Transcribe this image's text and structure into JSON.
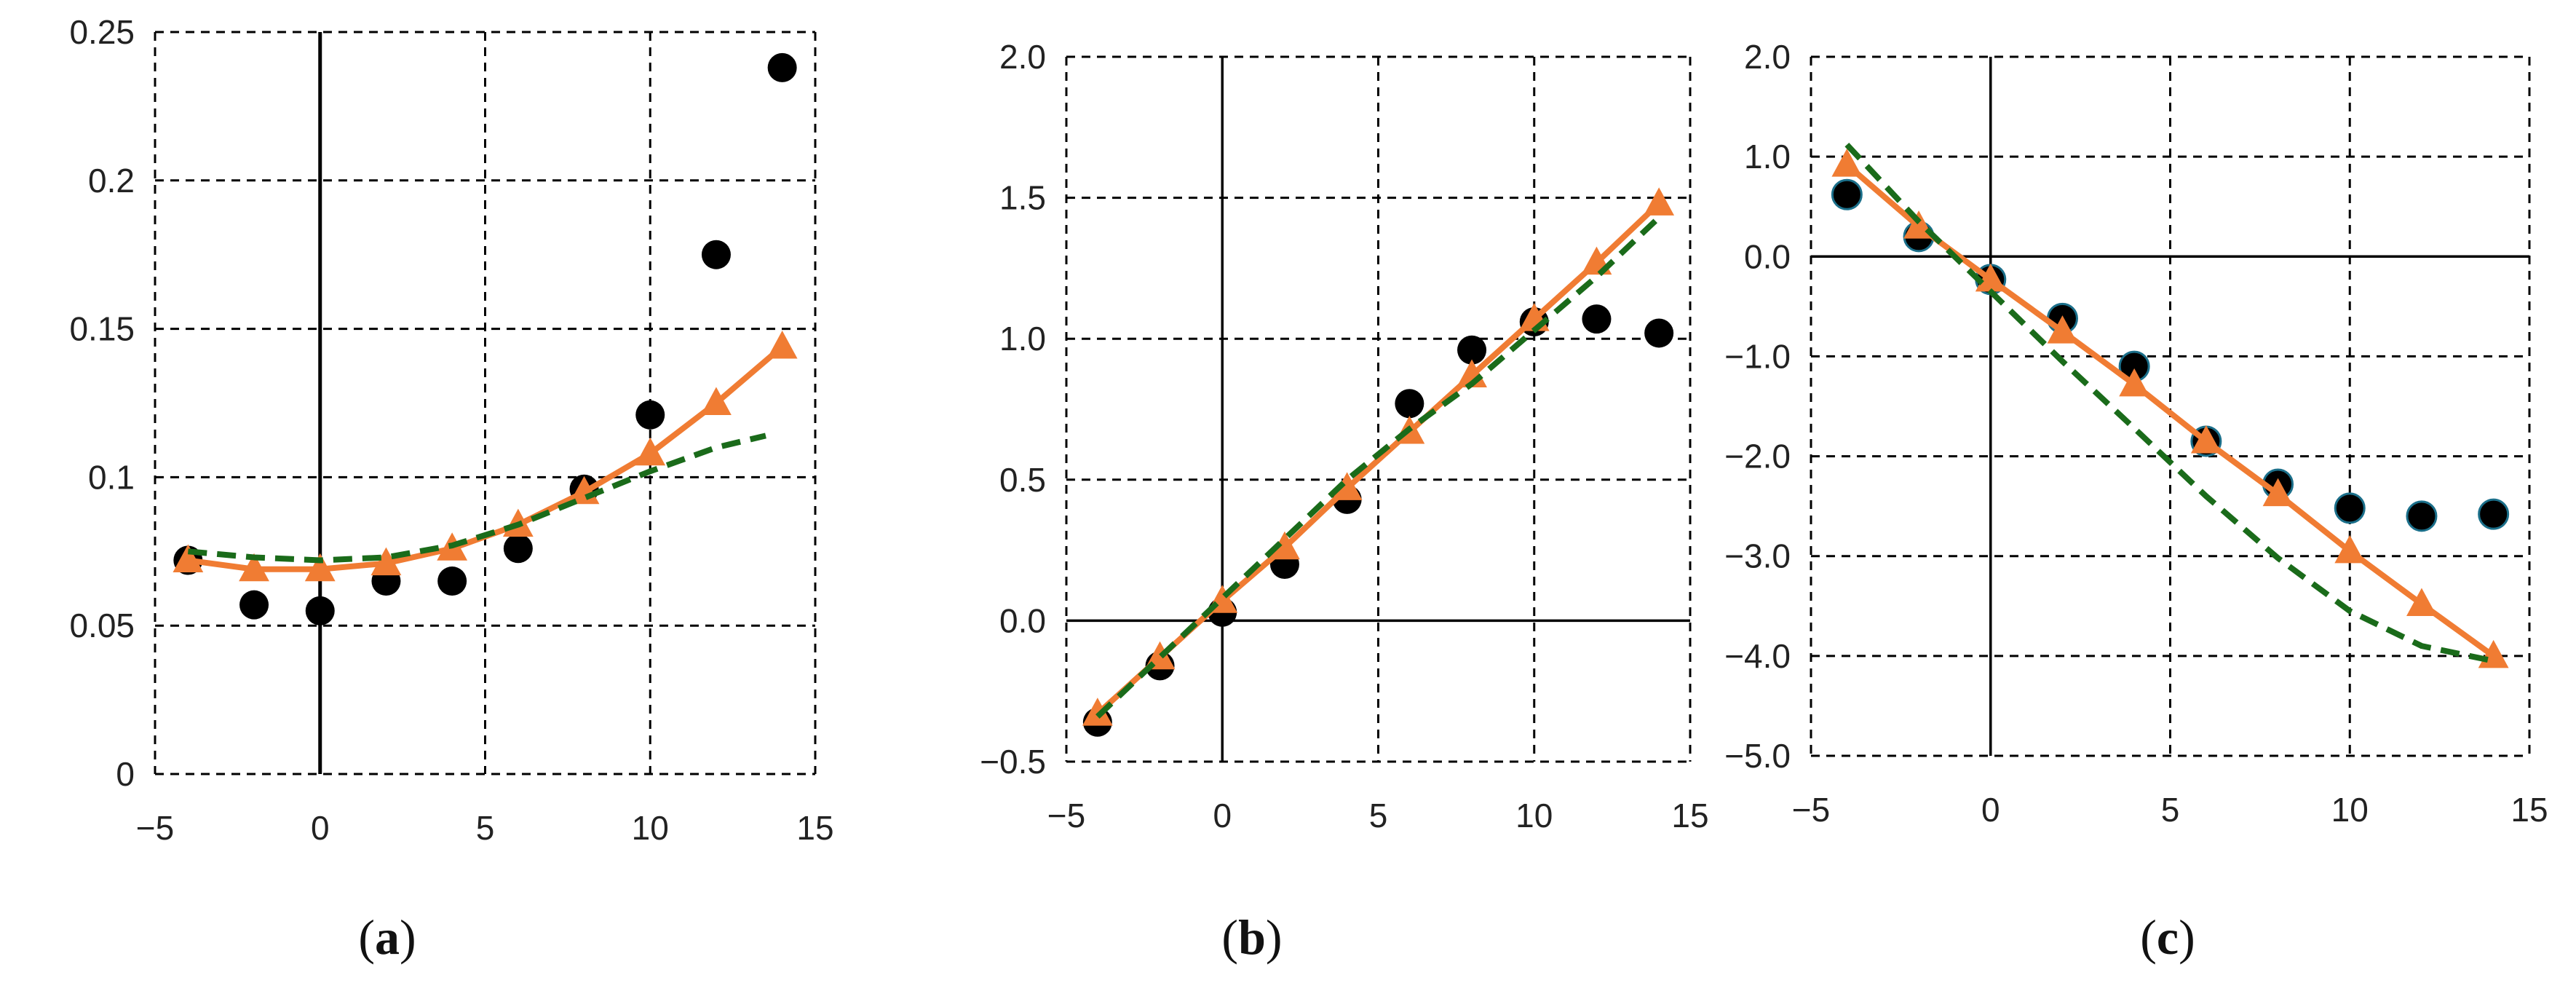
{
  "colors": {
    "observed": "#000000",
    "fit_solid": "#F07C33",
    "fit_dashed": "#1A6B1A",
    "grid": "#000000",
    "axis": "#000000"
  },
  "chart_data": [
    {
      "type": "line",
      "panel_label": "a",
      "title": "",
      "xlabel": "",
      "ylabel": "",
      "xlim": [
        -5,
        15
      ],
      "ylim": [
        0,
        0.25
      ],
      "xticks": [
        -5,
        0,
        5,
        10,
        15
      ],
      "xtick_labels": [
        "−5",
        "0",
        "5",
        "10",
        "15"
      ],
      "yticks": [
        0,
        0.05,
        0.1,
        0.15,
        0.2,
        0.25
      ],
      "ytick_labels": [
        "0",
        "0.05",
        "0.1",
        "0.15",
        "0.2",
        "0.25"
      ],
      "grid": true,
      "legend": "none",
      "series": [
        {
          "style": "scatter",
          "marker": "circle",
          "color": "#000000",
          "x": [
            -4,
            -2,
            0,
            2,
            4,
            6,
            8,
            10,
            12,
            14
          ],
          "y": [
            0.072,
            0.057,
            0.055,
            0.065,
            0.065,
            0.076,
            0.096,
            0.121,
            0.175,
            0.238
          ]
        },
        {
          "style": "line",
          "marker": "triangle",
          "color": "#F07C33",
          "x": [
            -4,
            -2,
            0,
            2,
            4,
            6,
            8,
            10,
            12,
            14
          ],
          "y": [
            0.072,
            0.069,
            0.069,
            0.071,
            0.076,
            0.084,
            0.095,
            0.108,
            0.125,
            0.144
          ]
        },
        {
          "style": "dashed",
          "marker": "none",
          "color": "#1A6B1A",
          "x": [
            -4,
            -2,
            0,
            2,
            4,
            6,
            8,
            10,
            12,
            13.5
          ],
          "y": [
            0.075,
            0.073,
            0.072,
            0.073,
            0.077,
            0.084,
            0.093,
            0.102,
            0.11,
            0.114
          ]
        }
      ]
    },
    {
      "type": "line",
      "panel_label": "b",
      "title": "",
      "xlabel": "",
      "ylabel": "",
      "xlim": [
        -5,
        15
      ],
      "ylim": [
        -0.5,
        2.0
      ],
      "xticks": [
        -5,
        0,
        5,
        10,
        15
      ],
      "xtick_labels": [
        "−5",
        "0",
        "5",
        "10",
        "15"
      ],
      "yticks": [
        -0.5,
        0.0,
        0.5,
        1.0,
        1.5,
        2.0
      ],
      "ytick_labels": [
        "−0.5",
        "0.0",
        "0.5",
        "1.0",
        "1.5",
        "2.0"
      ],
      "grid": true,
      "legend": "none",
      "series": [
        {
          "style": "scatter",
          "marker": "circle",
          "color": "#000000",
          "x": [
            -4,
            -2,
            0,
            2,
            4,
            6,
            8,
            10,
            12,
            14
          ],
          "y": [
            -0.36,
            -0.16,
            0.03,
            0.2,
            0.43,
            0.77,
            0.96,
            1.06,
            1.07,
            1.02
          ]
        },
        {
          "style": "line",
          "marker": "triangle",
          "color": "#F07C33",
          "x": [
            -4,
            -2,
            0,
            2,
            4,
            6,
            8,
            10,
            12,
            14
          ],
          "y": [
            -0.33,
            -0.13,
            0.07,
            0.26,
            0.47,
            0.67,
            0.87,
            1.07,
            1.27,
            1.48
          ]
        },
        {
          "style": "dashed",
          "marker": "none",
          "color": "#1A6B1A",
          "x": [
            -4,
            -2,
            0,
            2,
            4,
            6,
            8,
            10,
            12,
            14
          ],
          "y": [
            -0.34,
            -0.13,
            0.08,
            0.29,
            0.5,
            0.68,
            0.84,
            1.03,
            1.22,
            1.43
          ]
        }
      ]
    },
    {
      "type": "line",
      "panel_label": "c",
      "title": "",
      "xlabel": "",
      "ylabel": "",
      "xlim": [
        -5,
        15
      ],
      "ylim": [
        -5.0,
        2.0
      ],
      "xticks": [
        -5,
        0,
        5,
        10,
        15
      ],
      "xtick_labels": [
        "−5",
        "0",
        "5",
        "10",
        "15"
      ],
      "yticks": [
        -5.0,
        -4.0,
        -3.0,
        -2.0,
        -1.0,
        0.0,
        1.0,
        2.0
      ],
      "ytick_labels": [
        "−5.0",
        "−4.0",
        "−3.0",
        "−2.0",
        "−1.0",
        "0.0",
        "1.0",
        "2.0"
      ],
      "grid": true,
      "legend": "none",
      "series": [
        {
          "style": "scatter",
          "marker": "circle",
          "color": "#000000",
          "x": [
            -4,
            -2,
            0,
            2,
            4,
            6,
            8,
            10,
            12,
            14
          ],
          "y": [
            0.62,
            0.2,
            -0.23,
            -0.62,
            -1.1,
            -1.85,
            -2.28,
            -2.52,
            -2.6,
            -2.58
          ]
        },
        {
          "style": "line",
          "marker": "triangle",
          "color": "#F07C33",
          "x": [
            -4,
            -2,
            0,
            2,
            4,
            6,
            8,
            10,
            12,
            14
          ],
          "y": [
            0.92,
            0.3,
            -0.23,
            -0.75,
            -1.28,
            -1.85,
            -2.38,
            -2.95,
            -3.48,
            -4.0
          ]
        },
        {
          "style": "dashed",
          "marker": "none",
          "color": "#1A6B1A",
          "x": [
            -4,
            -2,
            0,
            2,
            4,
            6,
            8,
            10,
            12,
            14
          ],
          "y": [
            1.12,
            0.35,
            -0.35,
            -1.05,
            -1.72,
            -2.4,
            -3.02,
            -3.55,
            -3.9,
            -4.05
          ]
        }
      ]
    }
  ]
}
